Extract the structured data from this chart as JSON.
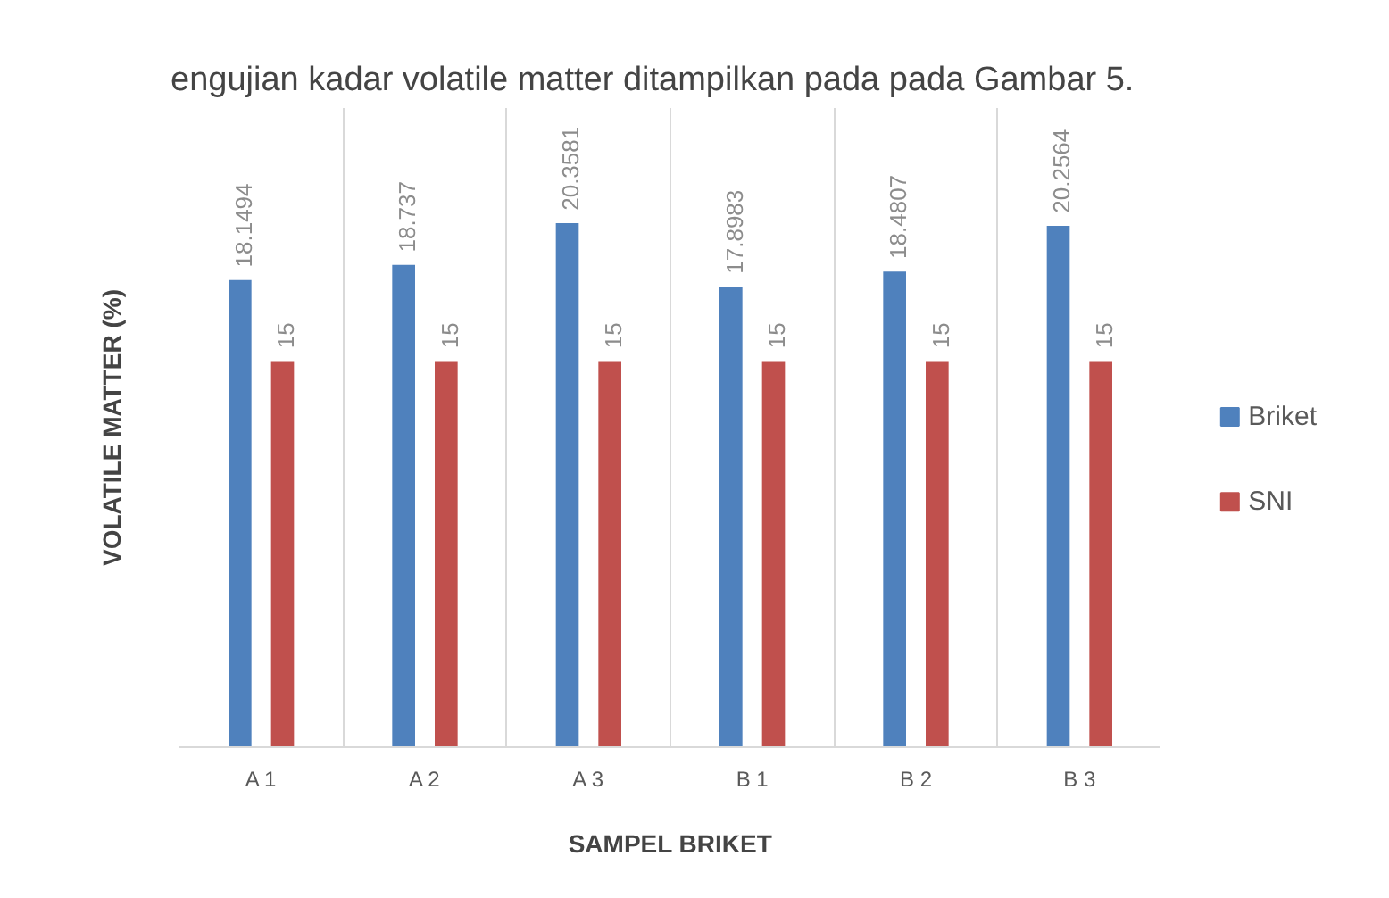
{
  "chart_data": {
    "type": "bar",
    "title": "engujian kadar volatile matter ditampilkan pada pada Gambar 5.",
    "xlabel": "SAMPEL BRIKET",
    "ylabel": "VOLATILE MATTER (%)",
    "categories": [
      "A 1",
      "A 2",
      "A 3",
      "B 1",
      "B 2",
      "B 3"
    ],
    "series": [
      {
        "name": "Briket",
        "color": "#4f81bd",
        "values": [
          18.1494,
          18.737,
          20.3581,
          17.8983,
          18.4807,
          20.2564
        ]
      },
      {
        "name": "SNI",
        "color": "#c0504d",
        "values": [
          15,
          15,
          15,
          15,
          15,
          15
        ]
      }
    ],
    "data_labels": true,
    "grid": "x",
    "legend": "right"
  }
}
